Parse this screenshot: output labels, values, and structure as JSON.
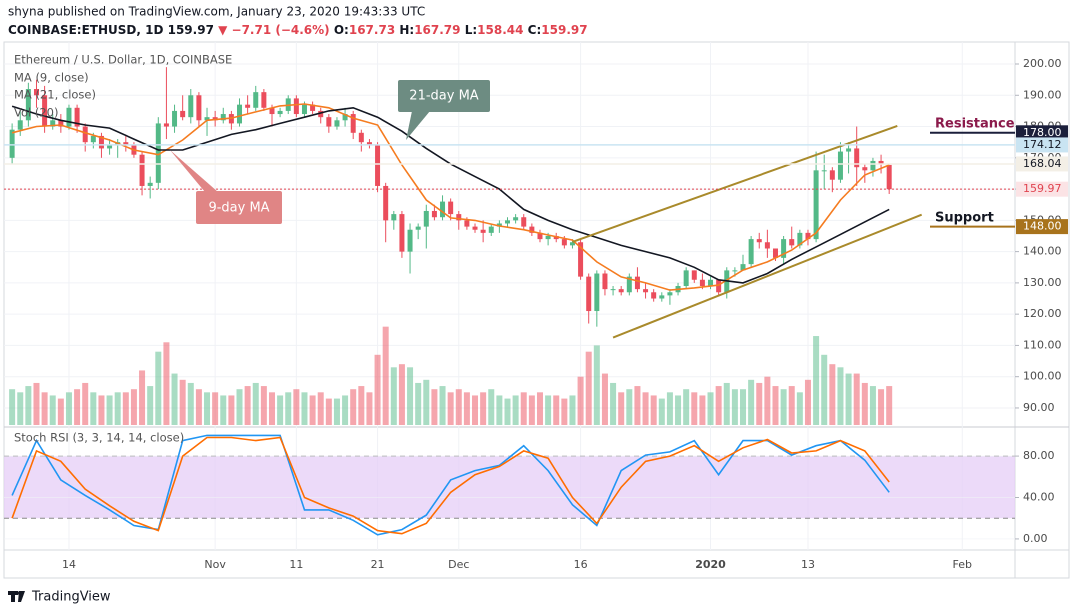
{
  "header": {
    "byline": "shyna published on TradingView.com, January 23, 2020 19:43:33 UTC",
    "symbol": "COINBASE:ETHUSD, 1D",
    "last": "159.97",
    "change": "▼ −7.71 (−4.6%)",
    "ohlc": [
      "O:",
      "167.73",
      "H:",
      "167.79",
      "L:",
      "158.44",
      "C:",
      "159.97"
    ]
  },
  "footer": {
    "brand": "TradingView"
  },
  "chart_data": [
    {
      "type": "candlestick",
      "title": "Ethereum / U.S. Dollar, 1D, COINBASE",
      "x": [
        "2019-10-07",
        "2019-10-08",
        "2019-10-09",
        "2019-10-10",
        "2019-10-11",
        "2019-10-12",
        "2019-10-13",
        "2019-10-14",
        "2019-10-15",
        "2019-10-16",
        "2019-10-17",
        "2019-10-18",
        "2019-10-19",
        "2019-10-20",
        "2019-10-21",
        "2019-10-22",
        "2019-10-23",
        "2019-10-24",
        "2019-10-25",
        "2019-10-26",
        "2019-10-27",
        "2019-10-28",
        "2019-10-29",
        "2019-10-30",
        "2019-10-31",
        "2019-11-01",
        "2019-11-02",
        "2019-11-03",
        "2019-11-04",
        "2019-11-05",
        "2019-11-06",
        "2019-11-07",
        "2019-11-08",
        "2019-11-09",
        "2019-11-10",
        "2019-11-11",
        "2019-11-12",
        "2019-11-13",
        "2019-11-14",
        "2019-11-15",
        "2019-11-16",
        "2019-11-17",
        "2019-11-18",
        "2019-11-19",
        "2019-11-20",
        "2019-11-21",
        "2019-11-22",
        "2019-11-23",
        "2019-11-24",
        "2019-11-25",
        "2019-11-26",
        "2019-11-27",
        "2019-11-28",
        "2019-11-29",
        "2019-11-30",
        "2019-12-01",
        "2019-12-02",
        "2019-12-03",
        "2019-12-04",
        "2019-12-05",
        "2019-12-06",
        "2019-12-07",
        "2019-12-08",
        "2019-12-09",
        "2019-12-10",
        "2019-12-11",
        "2019-12-12",
        "2019-12-13",
        "2019-12-14",
        "2019-12-15",
        "2019-12-16",
        "2019-12-17",
        "2019-12-18",
        "2019-12-19",
        "2019-12-20",
        "2019-12-21",
        "2019-12-22",
        "2019-12-23",
        "2019-12-24",
        "2019-12-25",
        "2019-12-26",
        "2019-12-27",
        "2019-12-28",
        "2019-12-29",
        "2019-12-30",
        "2019-12-31",
        "2020-01-01",
        "2020-01-02",
        "2020-01-03",
        "2020-01-04",
        "2020-01-05",
        "2020-01-06",
        "2020-01-07",
        "2020-01-08",
        "2020-01-09",
        "2020-01-10",
        "2020-01-11",
        "2020-01-12",
        "2020-01-13",
        "2020-01-14",
        "2020-01-15",
        "2020-01-16",
        "2020-01-17",
        "2020-01-18",
        "2020-01-19",
        "2020-01-20",
        "2020-01-21",
        "2020-01-22",
        "2020-01-23"
      ],
      "open": [
        170,
        179,
        182,
        192,
        190,
        180,
        182,
        180,
        186,
        180,
        175,
        177,
        173,
        174,
        175,
        174,
        171,
        161,
        162,
        181,
        180,
        185,
        183,
        190,
        182,
        183,
        182,
        184,
        181,
        187,
        186,
        191,
        186,
        184,
        185,
        189,
        184,
        187,
        185,
        183,
        180,
        182,
        184,
        178,
        175,
        174,
        161,
        150,
        152,
        140,
        147,
        148,
        153,
        151,
        156,
        152,
        150,
        148,
        147,
        146,
        148,
        149,
        150,
        151,
        148,
        146,
        144,
        145,
        144,
        142,
        143,
        132,
        121,
        133,
        128,
        128,
        127,
        132,
        128,
        127,
        125,
        126,
        127,
        129,
        134,
        131,
        129,
        131,
        127,
        134,
        134,
        136,
        144,
        143,
        141,
        138,
        144,
        142,
        146,
        144,
        166,
        166,
        163,
        172,
        173,
        167,
        166,
        169,
        167.73
      ],
      "high": [
        181,
        185,
        194,
        195,
        193,
        184,
        184,
        187,
        187,
        181,
        178,
        178,
        176,
        176,
        177,
        175,
        172,
        164,
        183,
        199,
        187,
        190,
        192,
        191,
        186,
        185,
        186,
        185,
        189,
        190,
        193,
        192,
        187,
        186,
        190,
        190,
        188,
        188,
        186,
        184,
        183,
        186,
        185,
        179,
        176,
        175,
        162,
        153,
        153,
        149,
        149,
        155,
        155,
        158,
        157,
        153,
        151,
        149,
        150,
        149,
        150,
        151,
        152,
        152,
        149,
        147,
        146,
        146,
        145,
        144,
        144,
        133,
        134,
        134,
        129,
        129,
        133,
        135,
        130,
        128,
        127,
        128,
        130,
        135,
        134,
        133,
        132,
        131,
        135,
        135,
        139,
        145,
        146,
        147,
        141,
        145,
        148,
        147,
        147,
        172,
        171,
        167,
        175,
        175,
        180,
        168,
        170,
        171,
        167.79
      ],
      "low": [
        168,
        177,
        180,
        186,
        178,
        179,
        178,
        179,
        178,
        172,
        173,
        170,
        171,
        170,
        172,
        170,
        158,
        157,
        160,
        176,
        178,
        182,
        181,
        180,
        177,
        180,
        181,
        179,
        180,
        184,
        185,
        185,
        180,
        183,
        184,
        183,
        183,
        184,
        181,
        178,
        179,
        180,
        176,
        172,
        173,
        159,
        143,
        147,
        138,
        133,
        144,
        141,
        150,
        150,
        150,
        147,
        147,
        146,
        143,
        145,
        146,
        148,
        149,
        147,
        145,
        143,
        142,
        143,
        141,
        141,
        131,
        117,
        116,
        126,
        126,
        126,
        126,
        127,
        125,
        124,
        124,
        123,
        126,
        128,
        130,
        128,
        128,
        126,
        125,
        132,
        134,
        135,
        141,
        138,
        137,
        136,
        141,
        141,
        142,
        143,
        160,
        159,
        162,
        165,
        161,
        162,
        164,
        165,
        158.44
      ],
      "close": [
        179,
        182,
        192,
        190,
        180,
        182,
        180,
        186,
        180,
        175,
        177,
        173,
        174,
        175,
        174,
        171,
        161,
        162,
        181,
        180,
        185,
        183,
        190,
        182,
        183,
        182,
        184,
        181,
        187,
        186,
        191,
        186,
        184,
        185,
        189,
        184,
        187,
        185,
        183,
        180,
        182,
        184,
        178,
        175,
        174,
        161,
        150,
        152,
        140,
        147,
        148,
        153,
        151,
        156,
        152,
        150,
        148,
        147,
        146,
        148,
        149,
        150,
        151,
        148,
        146,
        144,
        145,
        144,
        142,
        143,
        132,
        121,
        133,
        128,
        128,
        127,
        132,
        128,
        127,
        125,
        126,
        127,
        129,
        134,
        131,
        129,
        131,
        127,
        134,
        134,
        136,
        144,
        143,
        141,
        138,
        144,
        142,
        146,
        144,
        166,
        166,
        163,
        172,
        173,
        167,
        166,
        169,
        168,
        159.97
      ],
      "up_color": "#53b987",
      "down_color": "#eb4d5c",
      "volume": {
        "name": "Vol (20)",
        "values": [
          96,
          95,
          97,
          98,
          95,
          94,
          93,
          95,
          96,
          98,
          95,
          94,
          94,
          95,
          95,
          96,
          102,
          97,
          108,
          111,
          101,
          99,
          98,
          96,
          95,
          95,
          94,
          94,
          96,
          97,
          98,
          97,
          95,
          94,
          95,
          96,
          95,
          94,
          95,
          93,
          93,
          94,
          96,
          97,
          95,
          107,
          116,
          103,
          104,
          103,
          98,
          99,
          96,
          97,
          95,
          96,
          95,
          94,
          95,
          96,
          94,
          93,
          94,
          95,
          94,
          95,
          94,
          94,
          93,
          94,
          100,
          108,
          110,
          101,
          98,
          95,
          96,
          97,
          95,
          94,
          93,
          95,
          94,
          96,
          95,
          94,
          95,
          97,
          98,
          96,
          96,
          99,
          98,
          100,
          97,
          96,
          97,
          95,
          99,
          113,
          107,
          104,
          103,
          101,
          101,
          98,
          97,
          96,
          97
        ]
      },
      "series": [
        {
          "name": "MA (9, close)",
          "color": "#f57c20",
          "x": [
            "2019-10-07",
            "2019-10-10",
            "2019-10-13",
            "2019-10-16",
            "2019-10-19",
            "2019-10-22",
            "2019-10-25",
            "2019-10-28",
            "2019-10-31",
            "2019-11-03",
            "2019-11-06",
            "2019-11-09",
            "2019-11-12",
            "2019-11-15",
            "2019-11-18",
            "2019-11-21",
            "2019-11-24",
            "2019-11-27",
            "2019-11-30",
            "2019-12-03",
            "2019-12-06",
            "2019-12-09",
            "2019-12-12",
            "2019-12-15",
            "2019-12-18",
            "2019-12-21",
            "2019-12-24",
            "2019-12-27",
            "2019-12-30",
            "2020-01-02",
            "2020-01-05",
            "2020-01-08",
            "2020-01-11",
            "2020-01-14",
            "2020-01-17",
            "2020-01-20",
            "2020-01-23"
          ],
          "values": [
            178,
            180,
            180.5,
            178,
            175.7,
            172.5,
            171,
            175.7,
            182,
            182.7,
            184.7,
            186.6,
            187.2,
            186,
            182.7,
            180.5,
            167.7,
            156.5,
            150.8,
            150,
            148.2,
            147,
            145.3,
            143.7,
            136.7,
            131.9,
            130,
            127.7,
            128.4,
            129.3,
            134.1,
            136.7,
            140.5,
            146,
            156.5,
            164.5,
            167.7
          ]
        },
        {
          "name": "MA (21, close)",
          "color": "#131722",
          "x": [
            "2019-10-07",
            "2019-10-10",
            "2019-10-13",
            "2019-10-16",
            "2019-10-19",
            "2019-10-22",
            "2019-10-25",
            "2019-10-28",
            "2019-10-31",
            "2019-11-03",
            "2019-11-06",
            "2019-11-09",
            "2019-11-12",
            "2019-11-15",
            "2019-11-18",
            "2019-11-21",
            "2019-11-24",
            "2019-11-27",
            "2019-11-30",
            "2019-12-03",
            "2019-12-06",
            "2019-12-09",
            "2019-12-12",
            "2019-12-15",
            "2019-12-18",
            "2019-12-21",
            "2019-12-24",
            "2019-12-27",
            "2019-12-30",
            "2020-01-02",
            "2020-01-05",
            "2020-01-08",
            "2020-01-11",
            "2020-01-14",
            "2020-01-17",
            "2020-01-20",
            "2020-01-23"
          ],
          "values": [
            186.5,
            184,
            182,
            180.5,
            179.5,
            176,
            172.5,
            172.5,
            175,
            177.5,
            179,
            181,
            183,
            185,
            186,
            183,
            178.5,
            173,
            168,
            164,
            160,
            153.5,
            150,
            147,
            144.5,
            142,
            140,
            138,
            135,
            131,
            130,
            133,
            137.5,
            141.5,
            145.5,
            149.5,
            153.5
          ]
        }
      ],
      "trendlines": [
        {
          "color": "#a98a2b",
          "x": [
            "2019-12-15",
            "2020-01-24"
          ],
          "y": [
            143.1,
            180.2
          ]
        },
        {
          "color": "#a98a2b",
          "x": [
            "2019-12-20",
            "2020-01-27"
          ],
          "y": [
            112.5,
            151.8
          ]
        }
      ],
      "levels": [
        {
          "value": 178,
          "label": "178.00",
          "color": "#1b1f3b",
          "text_color": "#ffffff",
          "span": "right"
        },
        {
          "value": 174.12,
          "label": "174.12",
          "color": "#c9e4f2",
          "text_color": "#131722",
          "span": "full"
        },
        {
          "value": 168.04,
          "label": "168.04",
          "color": "#f3efe6",
          "text_color": "#131722",
          "span": "full"
        },
        {
          "value": 159.97,
          "label": "159.97",
          "color": "#fbe3e5",
          "text_color": "#e0434f",
          "span": "full",
          "dashed": true
        },
        {
          "value": 148,
          "label": "148.00",
          "color": "#a8731c",
          "text_color": "#ffffff",
          "span": "right"
        }
      ],
      "annotations": [
        "21-day MA",
        "9-day MA",
        "Resistance",
        "Support"
      ],
      "xlim": [
        "2019-10-06",
        "2020-02-07"
      ],
      "xticks": [
        {
          "value": "2019-10-14",
          "label": "14"
        },
        {
          "value": "2019-11-01",
          "label": "Nov"
        },
        {
          "value": "2019-11-11",
          "label": "11"
        },
        {
          "value": "2019-11-21",
          "label": "21"
        },
        {
          "value": "2019-12-01",
          "label": "Dec"
        },
        {
          "value": "2019-12-16",
          "label": "16"
        },
        {
          "value": "2020-01-01",
          "label": "2020"
        },
        {
          "value": "2020-01-13",
          "label": "13"
        },
        {
          "value": "2020-02-01",
          "label": "Feb"
        }
      ],
      "ylim": [
        84.55,
        207.04
      ],
      "yticks": [
        {
          "value": 200,
          "label": "200.00"
        },
        {
          "value": 190,
          "label": "190.00"
        },
        {
          "value": 180,
          "label": "180.00"
        },
        {
          "value": 170,
          "label": "170.00"
        },
        {
          "value": 160,
          "label": "160.00"
        },
        {
          "value": 150,
          "label": "150.00"
        },
        {
          "value": 140,
          "label": "140.00"
        },
        {
          "value": 130,
          "label": "130.00"
        },
        {
          "value": 120,
          "label": "120.00"
        },
        {
          "value": 110,
          "label": "110.00"
        },
        {
          "value": 100,
          "label": "100.00"
        },
        {
          "value": 90,
          "label": "90.00"
        }
      ],
      "grid": true
    },
    {
      "type": "line",
      "title": "Stoch RSI (3, 3, 14, 14, close)",
      "x": [
        "2019-10-07",
        "2019-10-10",
        "2019-10-13",
        "2019-10-16",
        "2019-10-19",
        "2019-10-22",
        "2019-10-25",
        "2019-10-28",
        "2019-10-31",
        "2019-11-03",
        "2019-11-06",
        "2019-11-09",
        "2019-11-12",
        "2019-11-15",
        "2019-11-18",
        "2019-11-21",
        "2019-11-24",
        "2019-11-27",
        "2019-11-30",
        "2019-12-03",
        "2019-12-06",
        "2019-12-09",
        "2019-12-12",
        "2019-12-15",
        "2019-12-18",
        "2019-12-21",
        "2019-12-24",
        "2019-12-27",
        "2019-12-30",
        "2020-01-02",
        "2020-01-05",
        "2020-01-08",
        "2020-01-11",
        "2020-01-14",
        "2020-01-17",
        "2020-01-20",
        "2020-01-23"
      ],
      "series": [
        {
          "color": "#2196f3",
          "values": [
            42,
            95,
            57,
            42,
            28,
            13,
            9,
            95,
            100,
            100,
            100,
            100,
            28,
            28,
            18,
            4,
            9,
            23,
            57,
            66,
            71,
            90,
            66,
            33,
            13,
            66,
            81,
            84,
            95,
            62,
            95,
            95,
            81,
            90,
            95,
            76,
            45
          ]
        },
        {
          "color": "#ff6d00",
          "values": [
            20,
            85,
            75,
            48,
            32,
            17,
            8,
            80,
            98,
            98,
            95,
            98,
            40,
            30,
            22,
            8,
            5,
            15,
            45,
            62,
            70,
            85,
            78,
            40,
            15,
            50,
            75,
            80,
            90,
            75,
            88,
            96,
            83,
            85,
            95,
            85,
            55
          ]
        }
      ],
      "band": [
        20,
        80
      ],
      "band_color": "#e6cdf7",
      "ylim": [
        -10.7,
        105.2
      ],
      "yticks": [
        {
          "value": 80,
          "label": "80.00"
        },
        {
          "value": 40,
          "label": "40.00"
        },
        {
          "value": 0,
          "label": "0.00"
        }
      ],
      "grid": true
    }
  ]
}
